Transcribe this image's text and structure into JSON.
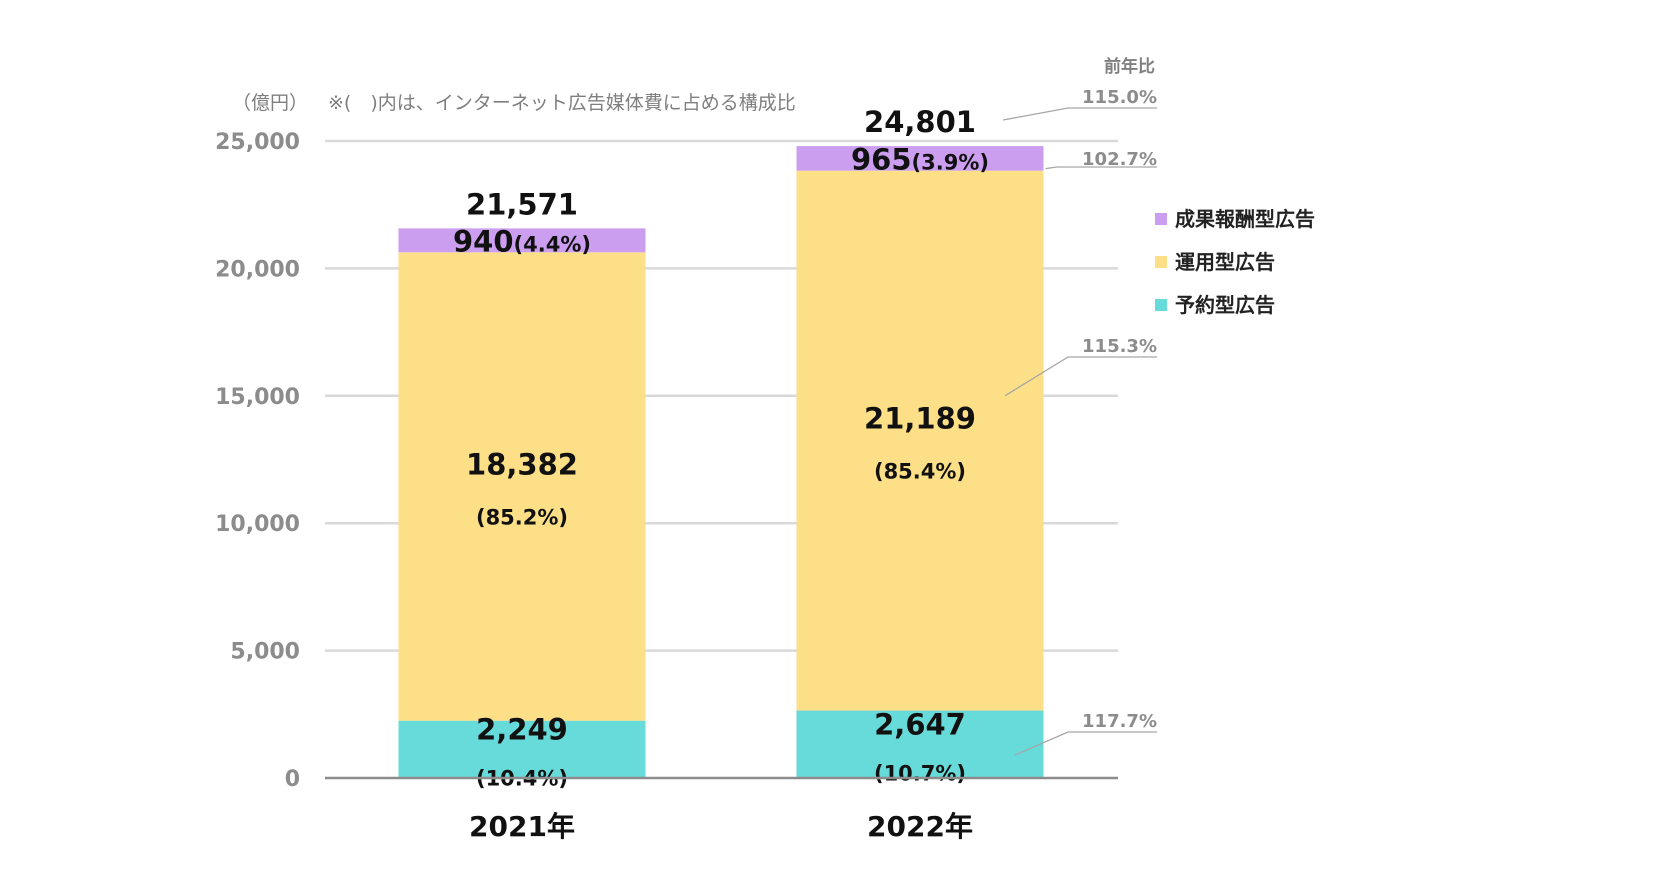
{
  "header": {
    "unit": "（億円）",
    "note": "※(　)内は、インターネット広告媒体費に占める構成比",
    "yoy_title": "前年比"
  },
  "colors": {
    "reservation": "#66dbd9",
    "operational": "#fcdf87",
    "performance": "#cc9ef0",
    "grid": "#d9d9d9",
    "axis": "#8c8c8c",
    "leader": "#a6a6a6"
  },
  "chart_data": {
    "type": "bar",
    "stacked": true,
    "categories": [
      "2021年",
      "2022年"
    ],
    "ylim": [
      0,
      25000
    ],
    "yticks": [
      "0",
      "5,000",
      "10,000",
      "15,000",
      "20,000",
      "25,000"
    ],
    "grid": true,
    "legend_position": "right",
    "series": [
      {
        "name": "予約型広告",
        "key": "reservation",
        "values": [
          2249,
          2647
        ],
        "value_labels": [
          "2,249",
          "2,647"
        ],
        "share_labels": [
          "(10.4%)",
          "(10.7%)"
        ]
      },
      {
        "name": "運用型広告",
        "key": "operational",
        "values": [
          18382,
          21189
        ],
        "value_labels": [
          "18,382",
          "21,189"
        ],
        "share_labels": [
          "(85.2%)",
          "(85.4%)"
        ]
      },
      {
        "name": "成果報酬型広告",
        "key": "performance",
        "values": [
          940,
          965
        ],
        "value_labels": [
          "940",
          "965"
        ],
        "share_labels": [
          "(4.4%)",
          "(3.9%)"
        ]
      }
    ],
    "totals": [
      21571,
      24801
    ],
    "total_labels": [
      "21,571",
      "24,801"
    ],
    "yoy": {
      "total": "115.0%",
      "performance": "102.7%",
      "operational": "115.3%",
      "reservation": "117.7%"
    }
  }
}
